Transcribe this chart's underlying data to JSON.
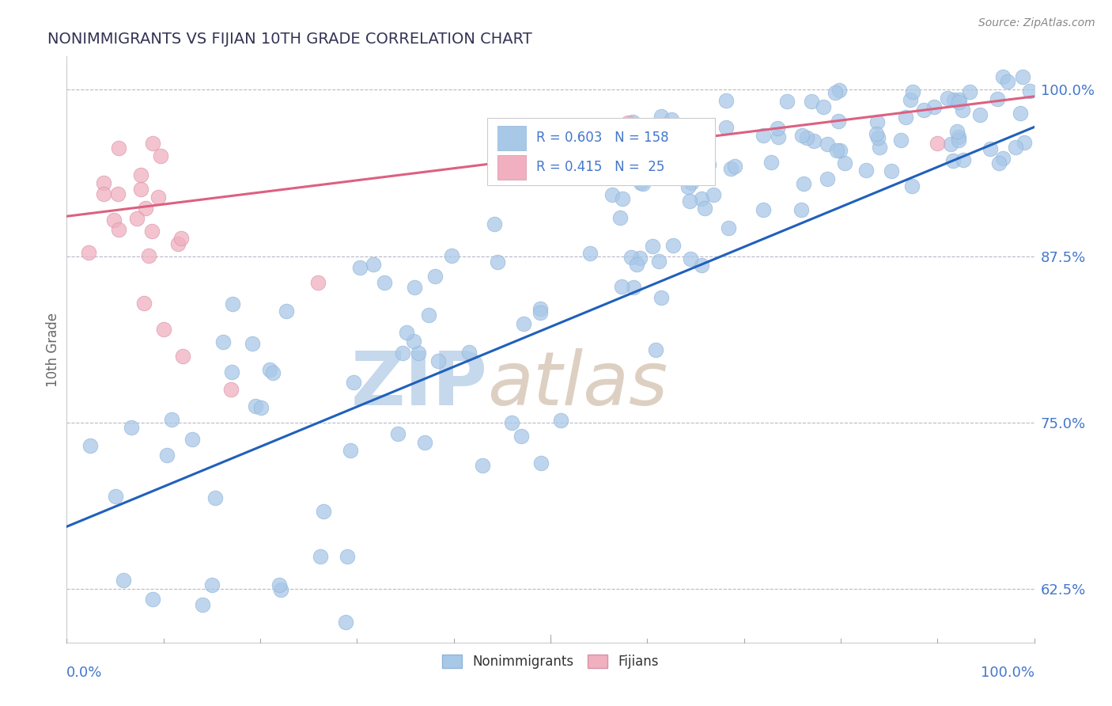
{
  "title": "NONIMMIGRANTS VS FIJIAN 10TH GRADE CORRELATION CHART",
  "source": "Source: ZipAtlas.com",
  "ylabel": "10th Grade",
  "yticks": [
    0.625,
    0.75,
    0.875,
    1.0
  ],
  "ytick_labels": [
    "62.5%",
    "75.0%",
    "87.5%",
    "100.0%"
  ],
  "xlim": [
    0.0,
    1.0
  ],
  "ylim": [
    0.585,
    1.025
  ],
  "legend_blue_r": "R = 0.603",
  "legend_blue_n": "N = 158",
  "legend_pink_r": "R = 0.415",
  "legend_pink_n": "N =  25",
  "blue_color": "#a8c8e8",
  "pink_color": "#f0b0c0",
  "blue_line_color": "#2060bb",
  "pink_line_color": "#dd6080",
  "axis_color": "#4477cc",
  "blue_line_x0": 0.0,
  "blue_line_y0": 0.672,
  "blue_line_x1": 1.0,
  "blue_line_y1": 0.972,
  "pink_line_x0": 0.0,
  "pink_line_y0": 0.905,
  "pink_line_x1": 1.0,
  "pink_line_y1": 0.995,
  "watermark_zip_color": "#c5d8ec",
  "watermark_atlas_color": "#d8c8b8"
}
